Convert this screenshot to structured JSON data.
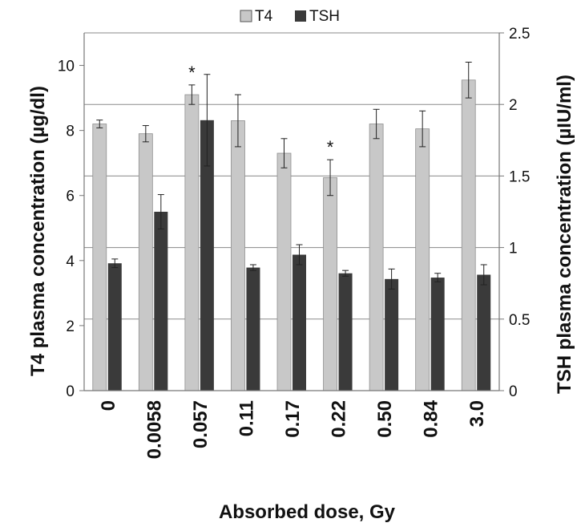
{
  "chart_data": {
    "type": "bar",
    "categories": [
      "0",
      "0.0058",
      "0.057",
      "0.11",
      "0.17",
      "0.22",
      "0.50",
      "0.84",
      "3.0"
    ],
    "xlabel": "Absorbed dose, Gy",
    "ylabel": "T4 plasma concentration (µg/dl)",
    "y2label": "TSH plasma concentration (µIU/ml)",
    "ylim": [
      0,
      11
    ],
    "y2lim": [
      0,
      2.5
    ],
    "yticks": [
      "0",
      "2",
      "4",
      "6",
      "8",
      "10"
    ],
    "y2ticks": [
      "0",
      "0.5",
      "1",
      "1.5",
      "2",
      "2.5"
    ],
    "grid": true,
    "legend_position": "top",
    "series": [
      {
        "name": "T4",
        "axis": "left",
        "color": "#c8c8c8",
        "values": [
          8.2,
          7.9,
          9.1,
          8.3,
          7.3,
          6.55,
          8.2,
          8.05,
          9.55
        ],
        "errors": [
          0.12,
          0.25,
          0.3,
          0.8,
          0.45,
          0.55,
          0.45,
          0.55,
          0.55
        ]
      },
      {
        "name": "TSH",
        "axis": "right",
        "color": "#3a3a3a",
        "values": [
          0.89,
          1.25,
          1.89,
          0.86,
          0.95,
          0.82,
          0.78,
          0.79,
          0.81
        ],
        "errors": [
          0.03,
          0.12,
          0.32,
          0.02,
          0.07,
          0.02,
          0.07,
          0.03,
          0.07
        ]
      }
    ],
    "annotations": [
      {
        "text": "*",
        "category": "0.057"
      },
      {
        "text": "*",
        "category": "0.22"
      }
    ]
  }
}
